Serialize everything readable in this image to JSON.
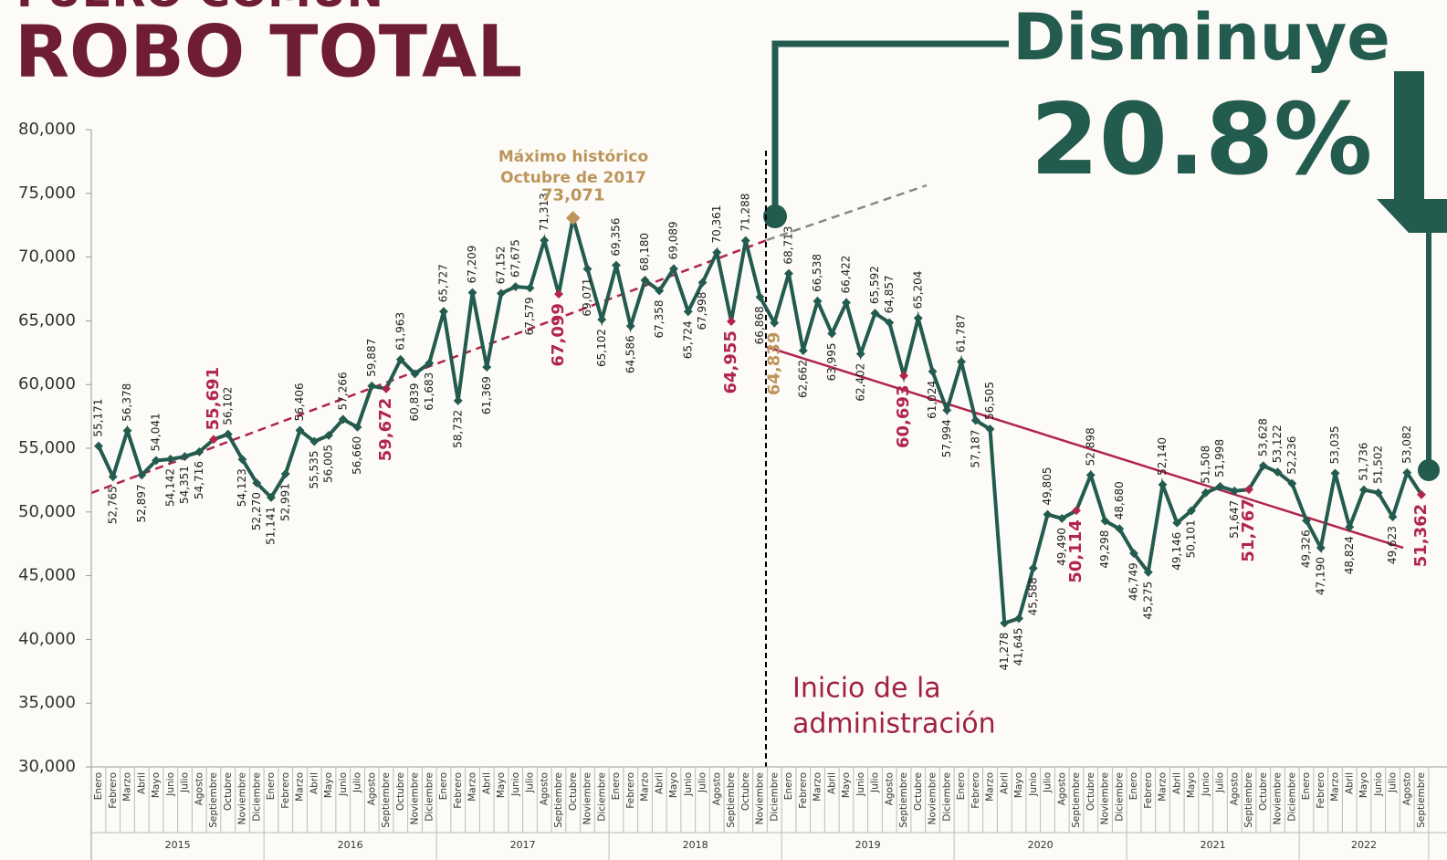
{
  "chart_data": {
    "type": "line",
    "supertitle": "FUERO COMÚN",
    "title": "ROBO TOTAL",
    "headline": "Disminuye",
    "headline_value": "20.8%",
    "annotations": {
      "max_line1": "Máximo histórico",
      "max_line2": "Octubre de 2017",
      "admin_line1": "Inicio de la",
      "admin_line2": "administración"
    },
    "years": [
      2015,
      2016,
      2017,
      2018,
      2019,
      2020,
      2021,
      2022
    ],
    "categories": [
      "Enero",
      "Febrero",
      "Marzo",
      "Abril",
      "Mayo",
      "Junio",
      "Julio",
      "Agosto",
      "Septiembre",
      "Octubre",
      "Noviembre",
      "Diciembre",
      "Enero",
      "Febrero",
      "Marzo",
      "Abril",
      "Mayo",
      "Junio",
      "Julio",
      "Agosto",
      "Septiembre",
      "Octubre",
      "Noviembre",
      "Diciembre",
      "Enero",
      "Febrero",
      "Marzo",
      "Abril",
      "Mayo",
      "Junio",
      "Julio",
      "Agosto",
      "Septiembre",
      "Octubre",
      "Noviembre",
      "Diciembre",
      "Enero",
      "Febrero",
      "Marzo",
      "Abril",
      "Mayo",
      "Junio",
      "Julio",
      "Agosto",
      "Septiembre",
      "Octubre",
      "Noviembre",
      "Diciembre",
      "Enero",
      "Febrero",
      "Marzo",
      "Abril",
      "Mayo",
      "Junio",
      "Julio",
      "Agosto",
      "Septiembre",
      "Octubre",
      "Noviembre",
      "Diciembre",
      "Enero",
      "Febrero",
      "Marzo",
      "Abril",
      "Mayo",
      "Junio",
      "Julio",
      "Agosto",
      "Septiembre",
      "Octubre",
      "Noviembre",
      "Diciembre",
      "Enero",
      "Febrero",
      "Marzo",
      "Abril",
      "Mayo",
      "Junio",
      "Julio",
      "Agosto",
      "Septiembre",
      "Octubre",
      "Noviembre",
      "Diciembre",
      "Enero",
      "Febrero",
      "Marzo",
      "Abril",
      "Mayo",
      "Junio",
      "Julio",
      "Agosto",
      "Septiembre"
    ],
    "series": [
      {
        "color": "#235b4e",
        "values": [
          55171,
          52765,
          56378,
          52897,
          54041,
          54142,
          54351,
          54716,
          55691,
          56102,
          54123,
          52270,
          51141,
          52991,
          56406,
          55535,
          56005,
          57266,
          56660,
          59887,
          59672,
          61963,
          60839,
          61683,
          65727,
          58732,
          67209,
          61369,
          67152,
          67675,
          67579,
          71313,
          67099,
          73071,
          69071,
          65102,
          69356,
          64586,
          68180,
          67358,
          69089,
          65724,
          67998,
          70361,
          64955,
          71288,
          66868,
          64839,
          68713,
          62662,
          66538,
          63995,
          66422,
          62402,
          65592,
          64857,
          60693,
          65204,
          61024,
          57994,
          61787,
          57187,
          56505,
          41278,
          41645,
          45588,
          49805,
          49490,
          50114,
          52898,
          49298,
          48680,
          46749,
          45275,
          52140,
          49146,
          50101,
          51508,
          51998,
          51647,
          51767,
          53628,
          53122,
          52236,
          49326,
          47190,
          53035,
          48824,
          51736,
          51502,
          49623,
          53082,
          51362
        ],
        "value_labels": [
          "55,171",
          "52,765",
          "56,378",
          "52,897",
          "54,041",
          "54,142",
          "54,351",
          "54,716",
          "55,691",
          "56,102",
          "54,123",
          "52,270",
          "51,141",
          "52,991",
          "56,406",
          "55,535",
          "56,005",
          "57,266",
          "56,660",
          "59,887",
          "59,672",
          "61,963",
          "60,839",
          "61,683",
          "65,727",
          "58,732",
          "67,209",
          "61,369",
          "67,152",
          "67,675",
          "67,579",
          "71,313",
          "67,099",
          "73,071",
          "69,071",
          "65,102",
          "69,356",
          "64,586",
          "68,180",
          "67,358",
          "69,089",
          "65,724",
          "67,998",
          "70,361",
          "64,955",
          "71,288",
          "66,868",
          "64,839",
          "68,713",
          "62,662",
          "66,538",
          "63,995",
          "66,422",
          "62,402",
          "65,592",
          "64,857",
          "60,693",
          "65,204",
          "61,024",
          "57,994",
          "61,787",
          "57,187",
          "56,505",
          "41,278",
          "41,645",
          "45,588",
          "49,805",
          "49,490",
          "50,114",
          "52,898",
          "49,298",
          "48,680",
          "46,749",
          "45,275",
          "52,140",
          "49,146",
          "50,101",
          "51,508",
          "51,998",
          "51,647",
          "51,767",
          "53,628",
          "53,122",
          "52,236",
          "49,326",
          "47,190",
          "53,035",
          "48,824",
          "51,736",
          "51,502",
          "49,623",
          "53,082",
          "51,362"
        ],
        "point_colors": [
          "#235b4e",
          "#235b4e",
          "#235b4e",
          "#235b4e",
          "#235b4e",
          "#235b4e",
          "#235b4e",
          "#235b4e",
          "#b0244d",
          "#235b4e",
          "#235b4e",
          "#235b4e",
          "#235b4e",
          "#235b4e",
          "#235b4e",
          "#235b4e",
          "#235b4e",
          "#235b4e",
          "#235b4e",
          "#235b4e",
          "#b0244d",
          "#235b4e",
          "#235b4e",
          "#235b4e",
          "#235b4e",
          "#235b4e",
          "#235b4e",
          "#235b4e",
          "#235b4e",
          "#235b4e",
          "#235b4e",
          "#235b4e",
          "#b0244d",
          "#bc955c",
          "#235b4e",
          "#235b4e",
          "#235b4e",
          "#235b4e",
          "#235b4e",
          "#235b4e",
          "#235b4e",
          "#235b4e",
          "#235b4e",
          "#235b4e",
          "#b0244d",
          "#235b4e",
          "#235b4e",
          "#235b4e",
          "#235b4e",
          "#235b4e",
          "#235b4e",
          "#235b4e",
          "#235b4e",
          "#235b4e",
          "#235b4e",
          "#235b4e",
          "#b0244d",
          "#235b4e",
          "#235b4e",
          "#235b4e",
          "#235b4e",
          "#235b4e",
          "#235b4e",
          "#235b4e",
          "#235b4e",
          "#235b4e",
          "#235b4e",
          "#235b4e",
          "#b0244d",
          "#235b4e",
          "#235b4e",
          "#235b4e",
          "#235b4e",
          "#235b4e",
          "#235b4e",
          "#235b4e",
          "#235b4e",
          "#235b4e",
          "#235b4e",
          "#235b4e",
          "#b0244d",
          "#235b4e",
          "#235b4e",
          "#235b4e",
          "#235b4e",
          "#235b4e",
          "#235b4e",
          "#235b4e",
          "#235b4e",
          "#235b4e",
          "#235b4e",
          "#235b4e",
          "#b0244d"
        ],
        "label_colors": [
          "#222",
          "#222",
          "#222",
          "#222",
          "#222",
          "#222",
          "#222",
          "#222",
          "#b0244d",
          "#222",
          "#222",
          "#222",
          "#222",
          "#222",
          "#222",
          "#222",
          "#222",
          "#222",
          "#222",
          "#222",
          "#b0244d",
          "#222",
          "#222",
          "#222",
          "#222",
          "#222",
          "#222",
          "#222",
          "#222",
          "#222",
          "#222",
          "#222",
          "#b0244d",
          "#bc955c",
          "#222",
          "#222",
          "#222",
          "#222",
          "#222",
          "#222",
          "#222",
          "#222",
          "#222",
          "#222",
          "#b0244d",
          "#222",
          "#222",
          "#bc955c",
          "#222",
          "#222",
          "#222",
          "#222",
          "#222",
          "#222",
          "#222",
          "#222",
          "#b0244d",
          "#222",
          "#222",
          "#222",
          "#222",
          "#222",
          "#222",
          "#222",
          "#222",
          "#222",
          "#222",
          "#222",
          "#b0244d",
          "#222",
          "#222",
          "#222",
          "#222",
          "#222",
          "#222",
          "#222",
          "#222",
          "#222",
          "#222",
          "#222",
          "#b0244d",
          "#222",
          "#222",
          "#222",
          "#222",
          "#222",
          "#222",
          "#222",
          "#222",
          "#222",
          "#222",
          "#222",
          "#b0244d"
        ]
      }
    ],
    "ylim": [
      30000,
      80000
    ],
    "yticks": [
      {
        "value": 30000,
        "label": "30,000"
      },
      {
        "value": 35000,
        "label": "35,000"
      },
      {
        "value": 40000,
        "label": "40,000"
      },
      {
        "value": 45000,
        "label": "45,000"
      },
      {
        "value": 50000,
        "label": "50,000"
      },
      {
        "value": 55000,
        "label": "55,000"
      },
      {
        "value": 60000,
        "label": "60,000"
      },
      {
        "value": 65000,
        "label": "65,000"
      },
      {
        "value": 70000,
        "label": "70,000"
      },
      {
        "value": 75000,
        "label": "75,000"
      },
      {
        "value": 80000,
        "label": "80,000"
      }
    ],
    "grid": false
  }
}
